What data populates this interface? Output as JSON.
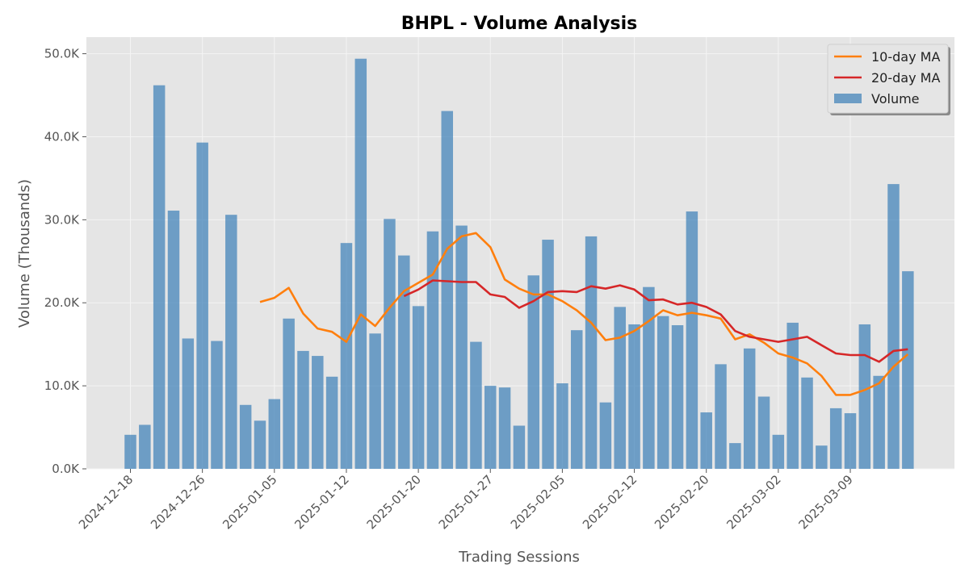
{
  "chart_data": {
    "type": "bar",
    "title": "BHPL - Volume Analysis",
    "xlabel": "Trading Sessions",
    "ylabel": "Volume (Thousands)",
    "ylim": [
      0,
      52
    ],
    "yticks": [
      0,
      10,
      20,
      30,
      40,
      50
    ],
    "ytick_labels": [
      "0.0K",
      "10.0K",
      "20.0K",
      "30.0K",
      "40.0K",
      "50.0K"
    ],
    "xtick_labels": [
      "2024-12-18",
      "2024-12-26",
      "2025-01-05",
      "2025-01-12",
      "2025-01-20",
      "2025-01-27",
      "2025-02-05",
      "2025-02-12",
      "2025-02-20",
      "2025-03-02",
      "2025-03-09"
    ],
    "xtick_positions": [
      0,
      5,
      10,
      15,
      20,
      25,
      30,
      35,
      40,
      45,
      50
    ],
    "grid": true,
    "legend_position": "top-right",
    "colors": {
      "volume": "#3a7fb8",
      "ma10": "#ff7f0e",
      "ma20": "#d62728",
      "plot_bg": "#e5e5e5",
      "grid": "#f4f4f4"
    },
    "series": [
      {
        "name": "Volume",
        "type": "bar",
        "values": [
          4.1,
          5.3,
          46.2,
          31.1,
          15.7,
          39.3,
          15.4,
          30.6,
          7.7,
          5.8,
          8.4,
          18.1,
          14.2,
          13.6,
          11.1,
          27.2,
          49.4,
          16.3,
          30.1,
          25.7,
          19.6,
          28.6,
          43.1,
          29.3,
          15.3,
          10.0,
          9.8,
          5.2,
          23.3,
          27.6,
          10.3,
          16.7,
          28.0,
          8.0,
          19.5,
          17.4,
          21.9,
          18.4,
          17.3,
          31.0,
          6.8,
          12.6,
          3.1,
          14.5,
          8.7,
          4.1,
          17.6,
          11.0,
          2.8,
          7.3,
          6.7,
          17.4,
          11.2,
          34.3,
          23.8
        ]
      },
      {
        "name": "10-day MA",
        "type": "line",
        "values": [
          null,
          null,
          null,
          null,
          null,
          null,
          null,
          null,
          null,
          20.1,
          20.6,
          21.8,
          18.7,
          16.9,
          16.5,
          15.3,
          18.6,
          17.2,
          19.4,
          21.4,
          22.4,
          23.4,
          26.5,
          28.0,
          28.4,
          26.7,
          22.8,
          21.7,
          21.0,
          21.0,
          20.2,
          19.1,
          17.6,
          15.5,
          15.8,
          16.6,
          17.8,
          19.1,
          18.5,
          18.8,
          18.5,
          18.1,
          15.6,
          16.2,
          15.2,
          13.9,
          13.4,
          12.7,
          11.2,
          8.9,
          8.9,
          9.5,
          10.3,
          12.3,
          13.8
        ]
      },
      {
        "name": "20-day MA",
        "type": "line",
        "values": [
          null,
          null,
          null,
          null,
          null,
          null,
          null,
          null,
          null,
          null,
          null,
          null,
          null,
          null,
          null,
          null,
          null,
          null,
          null,
          20.8,
          21.6,
          22.7,
          22.6,
          22.5,
          22.5,
          21.0,
          20.7,
          19.4,
          20.2,
          21.3,
          21.4,
          21.3,
          22.0,
          21.7,
          22.1,
          21.6,
          20.3,
          20.4,
          19.8,
          20.0,
          19.5,
          18.6,
          16.6,
          15.9,
          15.6,
          15.3,
          15.6,
          15.9,
          14.9,
          13.9,
          13.7,
          13.7,
          12.9,
          14.2,
          14.4
        ]
      }
    ]
  }
}
